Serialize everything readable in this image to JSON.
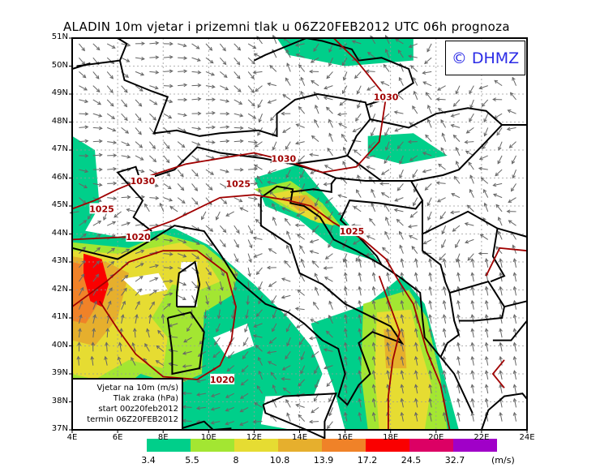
{
  "title": "ALADIN 10m vjetar i prizemni tlak u 06Z20FEB2012 UTC 06h prognoza",
  "logo": "© DHMZ",
  "legend": {
    "lines": [
      "Vjetar na 10m (m/s)",
      "Tlak zraka (hPa)",
      "start 00z20feb2012",
      "termin 06Z20FEB2012"
    ]
  },
  "axes": {
    "lat_labels": [
      "51N",
      "50N",
      "49N",
      "48N",
      "47N",
      "46N",
      "45N",
      "44N",
      "43N",
      "42N",
      "41N",
      "40N",
      "39N",
      "38N",
      "37N"
    ],
    "lon_labels": [
      "4E",
      "6E",
      "8E",
      "10E",
      "12E",
      "14E",
      "16E",
      "18E",
      "20E",
      "22E",
      "24E"
    ],
    "lat_range": [
      37,
      51
    ],
    "lon_range": [
      4,
      24
    ]
  },
  "colorbar": {
    "labels": [
      "3.4",
      "5.5",
      "8",
      "10.8",
      "13.9",
      "17.2",
      "24.5",
      "32.7"
    ],
    "unit": "(m/s)",
    "colors": [
      "#00cf8a",
      "#a3e632",
      "#e6dc32",
      "#e6af2d",
      "#f08228",
      "#fa0000",
      "#dc0064",
      "#a000c8"
    ]
  },
  "isobars": [
    {
      "label": "1030",
      "lon": 17.8,
      "lat": 48.9
    },
    {
      "label": "1030",
      "lon": 13.3,
      "lat": 46.7
    },
    {
      "label": "1030",
      "lon": 7.1,
      "lat": 45.9
    },
    {
      "label": "1025",
      "lon": 5.3,
      "lat": 44.9
    },
    {
      "label": "1025",
      "lon": 11.3,
      "lat": 45.8
    },
    {
      "label": "1020",
      "lon": 6.9,
      "lat": 43.9
    },
    {
      "label": "1025",
      "lon": 16.3,
      "lat": 44.1
    },
    {
      "label": "1020",
      "lon": 10.6,
      "lat": 38.8
    }
  ]
}
